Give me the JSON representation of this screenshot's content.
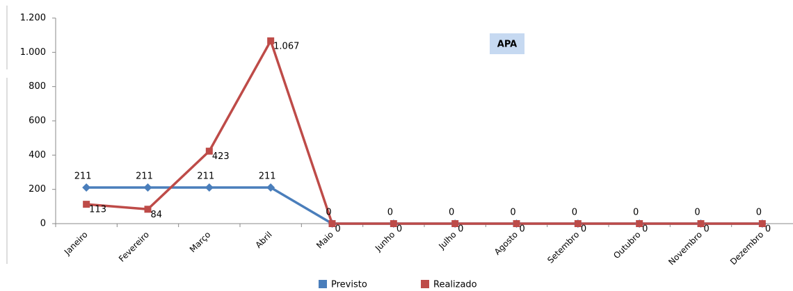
{
  "chart_data": {
    "type": "line",
    "title": "APA",
    "categories": [
      "Janeiro",
      "Fevereiro",
      "Março",
      "Abril",
      "Maio",
      "Junho",
      "Julho",
      "Agosto",
      "Setembro",
      "Outubro",
      "Novembro",
      "Dezembro"
    ],
    "series": [
      {
        "name": "Previsto",
        "color": "#4a7ebb",
        "marker": "diamond",
        "values": [
          211,
          211,
          211,
          211,
          0,
          0,
          0,
          0,
          0,
          0,
          0,
          0
        ]
      },
      {
        "name": "Realizado",
        "color": "#be4b48",
        "marker": "square",
        "values": [
          113,
          84,
          423,
          1067,
          0,
          0,
          0,
          0,
          0,
          0,
          0,
          0
        ],
        "value_labels": [
          "113",
          "84",
          "423",
          "1.067",
          "0",
          "0",
          "0",
          "0",
          "0",
          "0",
          "0",
          "0"
        ]
      }
    ],
    "ylim": [
      0,
      1200
    ],
    "yticks": [
      0,
      200,
      400,
      600,
      800,
      {
        "value": 1000,
        "label": "1.000"
      },
      {
        "value": 1200,
        "label": "1.200"
      }
    ],
    "legend": "bottom"
  }
}
